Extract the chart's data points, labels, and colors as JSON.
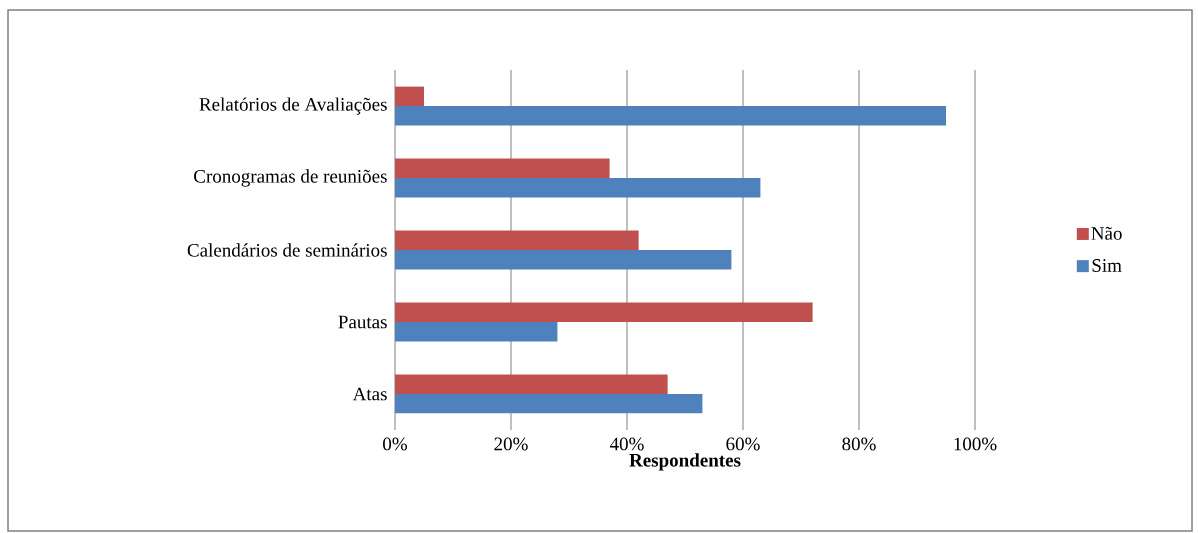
{
  "chart_data": {
    "type": "bar",
    "orientation": "horizontal",
    "xlabel": "Respondentes",
    "categories": [
      "Relatórios de Avaliações",
      "Cronogramas de reuniões",
      "Calendários de seminários",
      "Pautas",
      "Atas"
    ],
    "series": [
      {
        "name": "Não",
        "color": "#c0504d",
        "values": [
          5,
          37,
          42,
          72,
          47
        ]
      },
      {
        "name": "Sim",
        "color": "#4f81bd",
        "values": [
          95,
          63,
          58,
          28,
          53
        ]
      }
    ],
    "xlim": [
      0,
      100
    ],
    "xticks": [
      {
        "value": 0,
        "label": "0%"
      },
      {
        "value": 20,
        "label": "20%"
      },
      {
        "value": 40,
        "label": "40%"
      },
      {
        "value": 60,
        "label": "60%"
      },
      {
        "value": 80,
        "label": "80%"
      },
      {
        "value": 100,
        "label": "100%"
      }
    ],
    "grid": "x",
    "legend": "right"
  }
}
